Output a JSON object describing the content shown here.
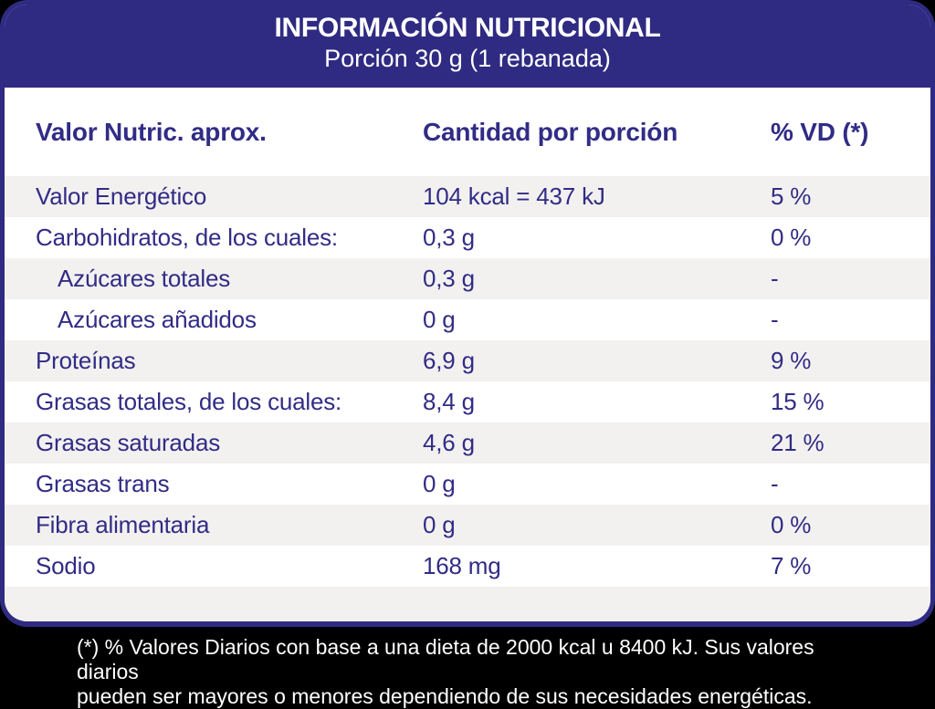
{
  "colors": {
    "brand_blue": "#2f2b82",
    "text_blue": "#312c85",
    "stripe_gray": "#f3f1f0",
    "card_bg": "#ffffff",
    "page_bg": "#000000",
    "footnote_text": "#ffffff"
  },
  "header": {
    "title": "INFORMACIÓN NUTRICIONAL",
    "subtitle": "Porción 30 g (1 rebanada)"
  },
  "table": {
    "columns": {
      "nutrient": "Valor Nutric. aprox.",
      "amount": "Cantidad por porción",
      "daily_value": "% VD (*)"
    },
    "rows": [
      {
        "label": "Valor Energético",
        "amount": "104 kcal = 437 kJ",
        "vd": "5 %",
        "indent": false
      },
      {
        "label": "Carbohidratos, de los cuales:",
        "amount": "0,3 g",
        "vd": "0 %",
        "indent": false
      },
      {
        "label": "Azúcares totales",
        "amount": "0,3 g",
        "vd": "-",
        "indent": true
      },
      {
        "label": "Azúcares añadidos",
        "amount": "0 g",
        "vd": "-",
        "indent": true
      },
      {
        "label": "Proteínas",
        "amount": "6,9 g",
        "vd": "9 %",
        "indent": false
      },
      {
        "label": "Grasas totales, de los cuales:",
        "amount": "8,4 g",
        "vd": "15 %",
        "indent": false
      },
      {
        "label": "Grasas saturadas",
        "amount": "4,6 g",
        "vd": "21 %",
        "indent": false
      },
      {
        "label": "Grasas trans",
        "amount": "0 g",
        "vd": "-",
        "indent": false
      },
      {
        "label": "Fibra alimentaria",
        "amount": "0 g",
        "vd": "0 %",
        "indent": false
      },
      {
        "label": "Sodio",
        "amount": "168 mg",
        "vd": "7 %",
        "indent": false
      }
    ]
  },
  "footnote": {
    "lines": [
      "(*) % Valores Diarios con base a una dieta de 2000 kcal u 8400 kJ. Sus valores diarios",
      "pueden ser mayores o menores dependiendo de sus necesidades energéticas."
    ]
  }
}
